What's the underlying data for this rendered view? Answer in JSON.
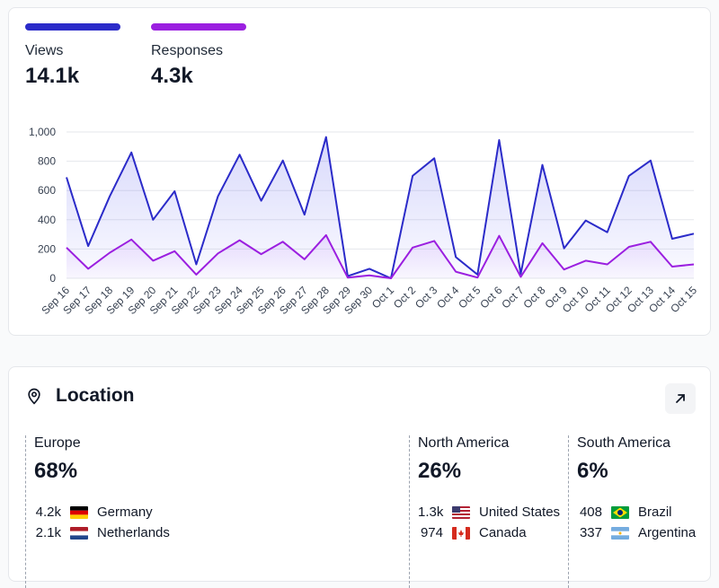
{
  "metrics": [
    {
      "label": "Views",
      "value": "14.1k",
      "color": "#2b2bc9"
    },
    {
      "label": "Responses",
      "value": "4.3k",
      "color": "#9b1fe0"
    }
  ],
  "chart_data": {
    "type": "line",
    "x": [
      "Sep 16",
      "Sep 17",
      "Sep 18",
      "Sep 19",
      "Sep 20",
      "Sep 21",
      "Sep 22",
      "Sep 23",
      "Sep 24",
      "Sep 25",
      "Sep 26",
      "Sep 27",
      "Sep 28",
      "Sep 29",
      "Sep 30",
      "Oct 1",
      "Oct 2",
      "Oct 3",
      "Oct 4",
      "Oct 5",
      "Oct 6",
      "Oct 7",
      "Oct 8",
      "Oct 9",
      "Oct 10",
      "Oct 11",
      "Oct 12",
      "Oct 13",
      "Oct 14",
      "Oct 15"
    ],
    "series": [
      {
        "name": "Views",
        "color": "#2b2bc9",
        "values": [
          690,
          220,
          560,
          860,
          400,
          595,
          95,
          560,
          845,
          530,
          805,
          435,
          965,
          15,
          65,
          0,
          700,
          820,
          145,
          25,
          945,
          30,
          775,
          205,
          395,
          315,
          700,
          805,
          270,
          305
        ]
      },
      {
        "name": "Responses",
        "color": "#9b1fe0",
        "values": [
          210,
          65,
          175,
          265,
          120,
          185,
          25,
          170,
          260,
          165,
          250,
          130,
          295,
          5,
          20,
          0,
          210,
          255,
          45,
          5,
          290,
          10,
          240,
          60,
          120,
          95,
          215,
          250,
          80,
          95
        ]
      }
    ],
    "yticks": [
      "0",
      "200",
      "400",
      "600",
      "800",
      "1,000"
    ],
    "ylim": [
      0,
      1000
    ],
    "grid": true
  },
  "location": {
    "title": "Location",
    "regions": [
      {
        "name": "Europe",
        "pct": "68%",
        "countries": [
          {
            "count": "4.2k",
            "name": "Germany",
            "flag": "germany-flag-icon"
          },
          {
            "count": "2.1k",
            "name": "Netherlands",
            "flag": "netherlands-flag-icon"
          }
        ]
      },
      {
        "name": "North America",
        "pct": "26%",
        "countries": [
          {
            "count": "1.3k",
            "name": "United States",
            "flag": "us-flag-icon"
          },
          {
            "count": "974",
            "name": "Canada",
            "flag": "canada-flag-icon"
          }
        ]
      },
      {
        "name": "South America",
        "pct": "6%",
        "countries": [
          {
            "count": "408",
            "name": "Brazil",
            "flag": "brazil-flag-icon"
          },
          {
            "count": "337",
            "name": "Argentina",
            "flag": "argentina-flag-icon"
          }
        ]
      }
    ]
  }
}
